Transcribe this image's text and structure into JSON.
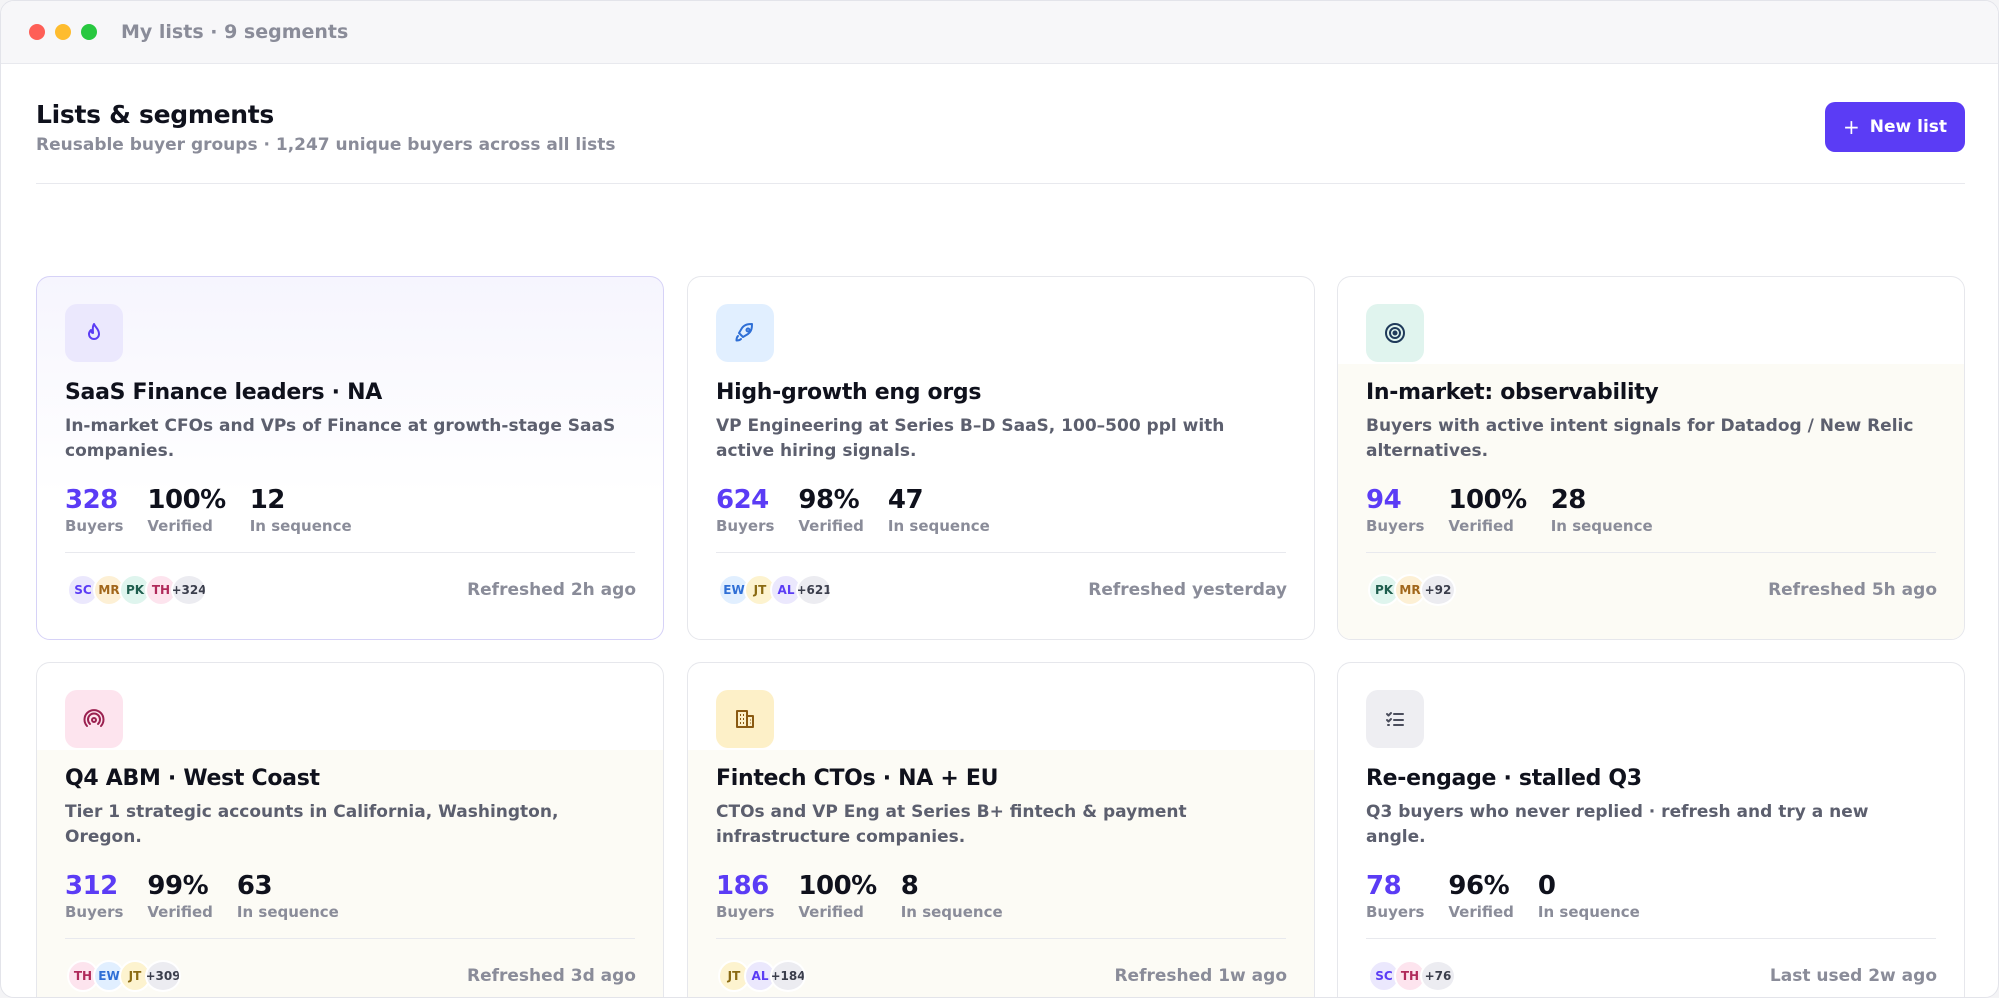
{
  "window": {
    "title": "My lists · 9 segments"
  },
  "header": {
    "title": "Lists & segments",
    "subtitle": "Reusable buyer groups · 1,247 unique buyers across all lists",
    "new_list_label": "New list"
  },
  "colors": {
    "accent": "#5b3cf5"
  },
  "cards": [
    {
      "icon": "flame-icon",
      "title": "SaaS Finance leaders · NA",
      "description": "In-market CFOs and VPs of Finance at growth-stage SaaS companies.",
      "buyers": "328",
      "buyers_label": "Buyers",
      "verified": "100%",
      "verified_label": "Verified",
      "in_sequence": "12",
      "in_sequence_label": "In sequence",
      "avatars": [
        "SC",
        "MR",
        "PK",
        "TH"
      ],
      "more": "+324",
      "refreshed": "Refreshed 2h ago"
    },
    {
      "icon": "rocket-icon",
      "title": "High-growth eng orgs",
      "description": "VP Engineering at Series B–D SaaS, 100–500 ppl with active hiring signals.",
      "buyers": "624",
      "buyers_label": "Buyers",
      "verified": "98%",
      "verified_label": "Verified",
      "in_sequence": "47",
      "in_sequence_label": "In sequence",
      "avatars": [
        "EW",
        "JT",
        "AL"
      ],
      "more": "+621",
      "refreshed": "Refreshed yesterday"
    },
    {
      "icon": "target-icon",
      "title": "In-market: observability",
      "description": "Buyers with active intent signals for Datadog / New Relic alternatives.",
      "buyers": "94",
      "buyers_label": "Buyers",
      "verified": "100%",
      "verified_label": "Verified",
      "in_sequence": "28",
      "in_sequence_label": "In sequence",
      "avatars": [
        "PK",
        "MR"
      ],
      "more": "+92",
      "refreshed": "Refreshed 5h ago"
    },
    {
      "icon": "broadcast-icon",
      "title": "Q4 ABM · West Coast",
      "description": "Tier 1 strategic accounts in California, Washington, Oregon.",
      "buyers": "312",
      "buyers_label": "Buyers",
      "verified": "99%",
      "verified_label": "Verified",
      "in_sequence": "63",
      "in_sequence_label": "In sequence",
      "avatars": [
        "TH",
        "EW",
        "JT"
      ],
      "more": "+309",
      "refreshed": "Refreshed 3d ago"
    },
    {
      "icon": "building-icon",
      "title": "Fintech CTOs · NA + EU",
      "description": "CTOs and VP Eng at Series B+ fintech & payment infrastructure companies.",
      "buyers": "186",
      "buyers_label": "Buyers",
      "verified": "100%",
      "verified_label": "Verified",
      "in_sequence": "8",
      "in_sequence_label": "In sequence",
      "avatars": [
        "JT",
        "AL"
      ],
      "more": "+184",
      "refreshed": "Refreshed 1w ago"
    },
    {
      "icon": "checklist-icon",
      "title": "Re-engage · stalled Q3",
      "description": "Q3 buyers who never replied · refresh and try a new angle.",
      "buyers": "78",
      "buyers_label": "Buyers",
      "verified": "96%",
      "verified_label": "Verified",
      "in_sequence": "0",
      "in_sequence_label": "In sequence",
      "avatars": [
        "SC",
        "TH"
      ],
      "more": "+76",
      "refreshed": "Last used 2w ago"
    }
  ]
}
